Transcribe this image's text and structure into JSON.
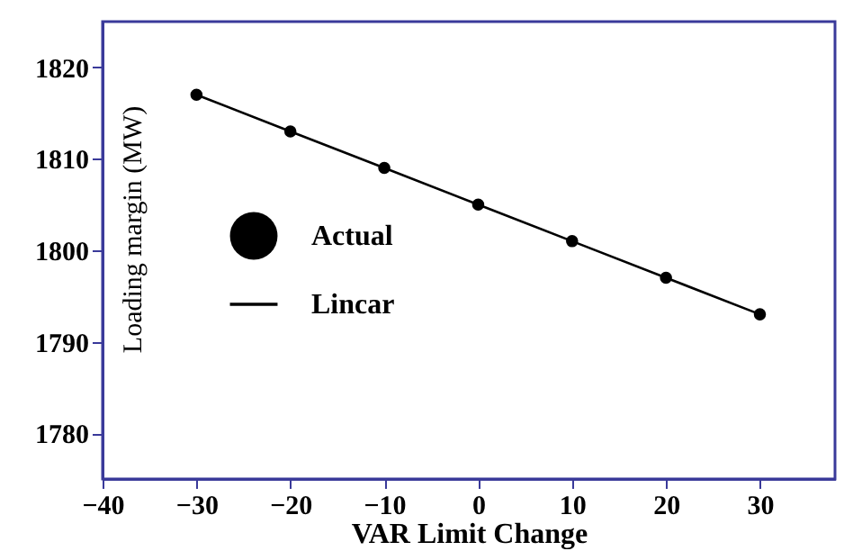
{
  "chart_data": {
    "type": "scatter",
    "xlabel": "VAR Limit Change",
    "ylabel": "Loading margin (MW)",
    "x": [
      -30,
      -20,
      -10,
      0,
      10,
      20,
      30
    ],
    "series": [
      {
        "name": "Actual",
        "color": "#000000",
        "marker": "circle",
        "values": [
          1817,
          1813,
          1809,
          1805,
          1801,
          1797,
          1793
        ]
      },
      {
        "name": "Lincar",
        "type": "line",
        "color": "#000000",
        "line_style": "solid",
        "values": [
          1817,
          1813,
          1809,
          1805,
          1801,
          1797,
          1793
        ]
      }
    ],
    "xlim": [
      -40,
      38
    ],
    "xticks": [
      -40,
      -30,
      -20,
      -10,
      0,
      10,
      20,
      30
    ],
    "ylim": [
      1775,
      1825
    ],
    "yticks": [
      1780,
      1790,
      1800,
      1810,
      1820
    ],
    "grid": false,
    "legend": "left"
  }
}
